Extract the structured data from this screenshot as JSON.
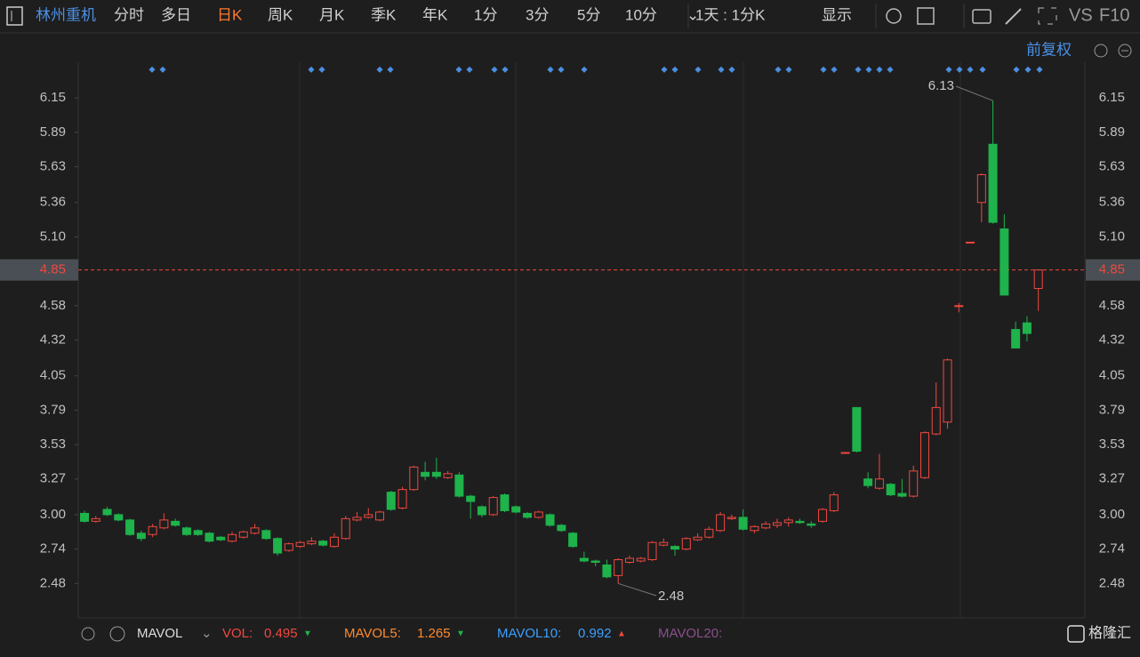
{
  "toolbar": {
    "stock": "林州重机",
    "periods": [
      "分时",
      "多日",
      "日K",
      "周K",
      "月K",
      "季K",
      "年K",
      "1分",
      "3分",
      "5分",
      "10分"
    ],
    "interval": "1天 : 1分K",
    "display": "显示",
    "vs": "VS",
    "f10": "F10"
  },
  "adjust": "前复权",
  "chart_data": {
    "type": "candlestick",
    "open": [
      3.01,
      2.95,
      3.04,
      3.0,
      2.96,
      2.86,
      2.85,
      2.9,
      2.95,
      2.9,
      2.88,
      2.86,
      2.83,
      2.8,
      2.83,
      2.86,
      2.88,
      2.82,
      2.73,
      2.76,
      2.78,
      2.8,
      2.76,
      2.82,
      2.96,
      2.98,
      2.96,
      3.17,
      3.05,
      3.19,
      3.32,
      3.32,
      3.28,
      3.3,
      3.14,
      3.06,
      3.0,
      3.15,
      3.06,
      3.01,
      2.98,
      3.0,
      2.92,
      2.86,
      2.67,
      2.65,
      2.62,
      2.54,
      2.64,
      2.65,
      2.66,
      2.77,
      2.76,
      2.74,
      2.81,
      2.83,
      2.88,
      2.97,
      2.98,
      2.88,
      2.9,
      2.92,
      2.94,
      2.95,
      2.93,
      2.95,
      3.03,
      3.47,
      3.81,
      3.27,
      3.2,
      3.23,
      3.16,
      3.14,
      3.28,
      3.61,
      3.7,
      4.58,
      5.06,
      5.36,
      5.8,
      5.16,
      4.4,
      4.45,
      4.71
    ],
    "high": [
      3.03,
      2.99,
      3.06,
      3.01,
      2.97,
      2.88,
      2.93,
      3.01,
      2.97,
      2.91,
      2.89,
      2.87,
      2.84,
      2.87,
      2.88,
      2.93,
      2.89,
      2.83,
      2.79,
      2.8,
      2.83,
      2.81,
      2.86,
      2.99,
      3.02,
      3.05,
      3.03,
      3.18,
      3.21,
      3.37,
      3.4,
      3.43,
      3.33,
      3.32,
      3.15,
      3.07,
      3.14,
      3.16,
      3.07,
      3.02,
      3.03,
      3.01,
      2.93,
      2.87,
      2.72,
      2.66,
      2.66,
      2.67,
      2.69,
      2.68,
      2.8,
      2.82,
      2.77,
      2.83,
      2.86,
      2.91,
      3.02,
      3.0,
      3.04,
      2.92,
      2.95,
      2.97,
      2.98,
      2.97,
      2.95,
      3.05,
      3.17,
      3.47,
      3.81,
      3.32,
      3.46,
      3.24,
      3.27,
      3.37,
      3.63,
      4.0,
      4.18,
      4.6,
      5.06,
      5.58,
      6.13,
      5.27,
      4.46,
      4.5,
      4.85
    ],
    "low": [
      2.94,
      2.94,
      2.99,
      2.95,
      2.84,
      2.8,
      2.83,
      2.89,
      2.91,
      2.84,
      2.84,
      2.79,
      2.8,
      2.79,
      2.82,
      2.85,
      2.81,
      2.69,
      2.72,
      2.75,
      2.77,
      2.76,
      2.75,
      2.81,
      2.95,
      2.97,
      2.95,
      3.03,
      3.04,
      3.18,
      3.26,
      3.27,
      3.27,
      3.13,
      2.97,
      2.98,
      2.99,
      3.02,
      3.01,
      2.97,
      2.97,
      2.91,
      2.87,
      2.75,
      2.64,
      2.61,
      2.52,
      2.48,
      2.63,
      2.64,
      2.65,
      2.76,
      2.69,
      2.73,
      2.8,
      2.82,
      2.87,
      2.96,
      2.88,
      2.86,
      2.89,
      2.9,
      2.91,
      2.93,
      2.9,
      2.94,
      3.02,
      3.47,
      3.47,
      3.2,
      3.19,
      3.14,
      3.13,
      3.13,
      3.27,
      3.6,
      3.65,
      4.53,
      5.06,
      5.21,
      5.2,
      4.66,
      4.26,
      4.31,
      4.54
    ],
    "close": [
      2.95,
      2.97,
      3.0,
      2.96,
      2.85,
      2.82,
      2.91,
      2.96,
      2.92,
      2.85,
      2.85,
      2.8,
      2.81,
      2.85,
      2.87,
      2.9,
      2.82,
      2.71,
      2.78,
      2.79,
      2.8,
      2.77,
      2.83,
      2.97,
      2.98,
      3.0,
      3.02,
      3.04,
      3.19,
      3.36,
      3.29,
      3.29,
      3.31,
      3.14,
      3.1,
      3.0,
      3.13,
      3.03,
      3.02,
      2.98,
      3.02,
      2.92,
      2.88,
      2.76,
      2.65,
      2.64,
      2.53,
      2.66,
      2.67,
      2.67,
      2.79,
      2.79,
      2.74,
      2.82,
      2.83,
      2.89,
      3.0,
      2.98,
      2.89,
      2.91,
      2.93,
      2.94,
      2.96,
      2.94,
      2.92,
      3.04,
      3.15,
      3.47,
      3.48,
      3.22,
      3.27,
      3.15,
      3.14,
      3.33,
      3.62,
      3.81,
      4.17,
      4.58,
      5.06,
      5.57,
      5.21,
      4.66,
      4.26,
      4.37,
      4.85
    ],
    "ylim": [
      2.22,
      6.42
    ],
    "yticks": [
      6.15,
      5.89,
      5.63,
      5.36,
      {
        "value": 5.1,
        "label": "5.10"
      },
      4.85,
      4.58,
      4.32,
      4.05,
      3.79,
      3.53,
      3.27,
      {
        "value": 3,
        "label": "3.00"
      },
      2.74,
      2.48
    ],
    "last_price": 4.85,
    "annotations": [
      6.13,
      2.48
    ],
    "up_color": "#f0483e",
    "down_color": "#1eb34b"
  },
  "indicator": {
    "name": "MAVOL",
    "vol_label": "VOL:",
    "vol": 0.495,
    "ma5_label": "MAVOL5:",
    "ma5": 1.265,
    "ma10_label": "MAVOL10:",
    "ma10": 0.992,
    "ma20_label": "MAVOL20:"
  },
  "logo": "格隆汇"
}
